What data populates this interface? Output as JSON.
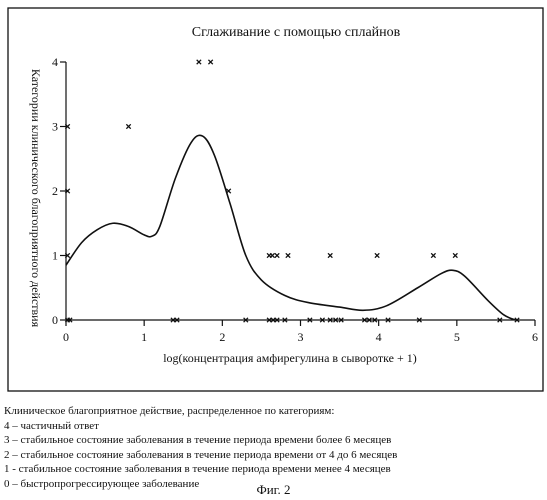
{
  "chart_data": {
    "type": "scatter",
    "title": "Сглаживание с помощью сплайнов",
    "xlabel": "log(концентрация амфирегулина в сыворотке + 1)",
    "ylabel": "Категории клинического благоприятного действия",
    "xlim": [
      0,
      6
    ],
    "ylim": [
      0,
      4
    ],
    "x_ticks": [
      "0",
      "1",
      "2",
      "3",
      "4",
      "5",
      "6"
    ],
    "y_ticks": [
      "0",
      "1",
      "2",
      "3",
      "4"
    ],
    "grid": false,
    "series": [
      {
        "style": "points",
        "points": [
          [
            0.02,
            3
          ],
          [
            0.8,
            3
          ],
          [
            1.7,
            4
          ],
          [
            1.85,
            4
          ],
          [
            0.02,
            2
          ],
          [
            2.08,
            2
          ],
          [
            0.02,
            1
          ],
          [
            2.6,
            1
          ],
          [
            2.64,
            1
          ],
          [
            2.7,
            1
          ],
          [
            2.84,
            1
          ],
          [
            3.38,
            1
          ],
          [
            3.98,
            1
          ],
          [
            4.7,
            1
          ],
          [
            4.98,
            1
          ],
          [
            0.02,
            0
          ],
          [
            0.05,
            0
          ],
          [
            1.37,
            0
          ],
          [
            1.42,
            0
          ],
          [
            2.3,
            0
          ],
          [
            2.6,
            0
          ],
          [
            2.65,
            0
          ],
          [
            2.7,
            0
          ],
          [
            2.8,
            0
          ],
          [
            3.12,
            0
          ],
          [
            3.28,
            0
          ],
          [
            3.38,
            0
          ],
          [
            3.45,
            0
          ],
          [
            3.52,
            0
          ],
          [
            3.82,
            0
          ],
          [
            3.88,
            0
          ],
          [
            3.95,
            0
          ],
          [
            4.12,
            0
          ],
          [
            4.52,
            0
          ],
          [
            5.55,
            0
          ],
          [
            5.77,
            0
          ]
        ]
      },
      {
        "style": "smoothing-spline",
        "x": [
          0,
          0.2,
          0.4,
          0.6,
          0.8,
          1.0,
          1.1,
          1.2,
          1.4,
          1.6,
          1.75,
          1.9,
          2.1,
          2.3,
          2.5,
          2.8,
          3.1,
          3.5,
          3.8,
          4.1,
          4.5,
          4.8,
          4.95,
          5.1,
          5.4,
          5.6,
          5.75
        ],
        "y": [
          0.85,
          1.2,
          1.4,
          1.5,
          1.45,
          1.32,
          1.3,
          1.45,
          2.2,
          2.75,
          2.85,
          2.55,
          1.8,
          1.0,
          0.62,
          0.38,
          0.27,
          0.2,
          0.15,
          0.22,
          0.5,
          0.72,
          0.77,
          0.68,
          0.3,
          0.08,
          0.0
        ]
      }
    ]
  },
  "legend_block": {
    "heading": "Клиническое благоприятное действие, распределенное по категориям:",
    "items": [
      "4 – частичный ответ",
      "3 – стабильное состояние заболевания в течение периода времени более 6 месяцев",
      "2 – стабильное состояние заболевания в течение периода времени от 4 до 6 месяцев",
      "1 - стабильное состояние заболевания в течение периода времени менее 4 месяцев",
      "0 – быстропрогрессирующее заболевание"
    ]
  },
  "figure_caption": "Фиг. 2"
}
